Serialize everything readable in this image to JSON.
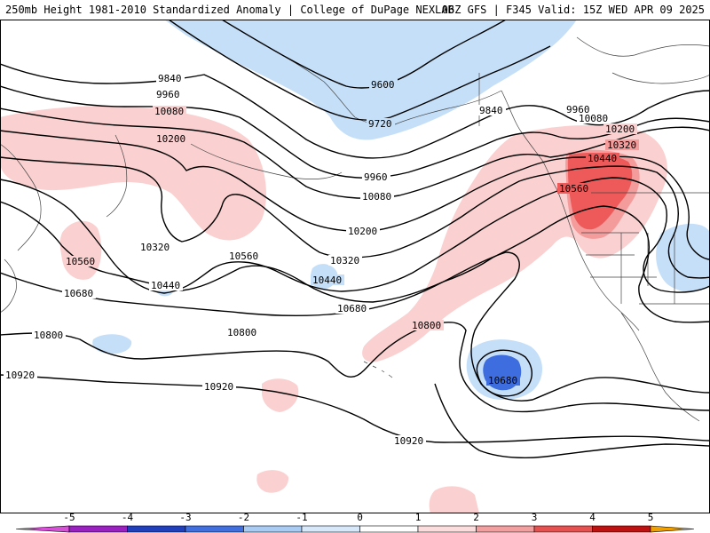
{
  "header": {
    "left_title": "250mb Height 1981-2010 Standardized Anomaly | College of DuPage NEXLAB",
    "right_title": "06Z GFS | F345 Valid: 15Z WED APR 09 2025"
  },
  "contour_labels": {
    "c9600": "9600",
    "c9720": "9720",
    "c9840_w": "9840",
    "c9840_e": "9840",
    "c9960_w": "9960",
    "c9960_c": "9960",
    "c9960_e": "9960",
    "c10080_w": "10080",
    "c10080_c": "10080",
    "c10080_e": "10080",
    "c10200_w": "10200",
    "c10200_c": "10200",
    "c10200_e": "10200",
    "c10320_w": "10320",
    "c10320_c": "10320",
    "c10320_e": "10320",
    "c10440_w": "10440",
    "c10440_c": "10440",
    "c10440_e": "10440",
    "c10560_w": "10560",
    "c10560_c": "10560",
    "c10560_e": "10560",
    "c10680_w": "10680",
    "c10680_c": "10680",
    "c10680_low": "10680",
    "c10800_w": "10800",
    "c10800_c": "10800",
    "c10800_e": "10800",
    "c10920_w": "10920",
    "c10920_c": "10920",
    "c10920_s": "10920"
  },
  "colorbar": {
    "ticks": [
      "-5",
      "-4",
      "-3",
      "-2",
      "-1",
      "0",
      "1",
      "2",
      "3",
      "4",
      "5"
    ],
    "colors": [
      "#d84fd8",
      "#9b1fc2",
      "#1f3fbf",
      "#3f6fe0",
      "#a9ccf5",
      "#d8e8fb",
      "#ffffff",
      "#fcdcdc",
      "#f49f9f",
      "#e8504f",
      "#c01010",
      "#f0a000"
    ]
  },
  "shading_colors": {
    "neg_light": "#c5dff8",
    "neg_medium": "#a5c8f2",
    "neg_strong": "#3e6de0",
    "pos_light": "#fbd0d0",
    "pos_medium": "#f49c9c",
    "pos_strong": "#ee5a5a"
  }
}
